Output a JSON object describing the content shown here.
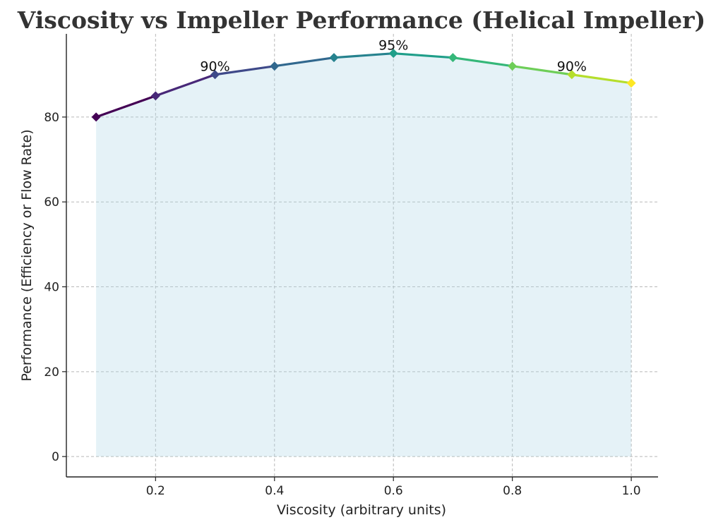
{
  "chart_data": {
    "type": "line",
    "title": "Viscosity vs Impeller Performance (Helical Impeller)",
    "xlabel": "Viscosity (arbitrary units)",
    "ylabel": "Performance (Efficiency or Flow Rate)",
    "x": [
      0.1,
      0.2,
      0.3,
      0.4,
      0.5,
      0.6,
      0.7,
      0.8,
      0.9,
      1.0
    ],
    "series": [
      {
        "name": "Performance",
        "values": [
          80,
          85,
          90,
          92,
          94,
          95,
          94,
          92,
          90,
          88
        ]
      }
    ],
    "xlim": [
      0.05,
      1.045
    ],
    "ylim": [
      -4.8,
      99.6
    ],
    "xticks": [
      0.2,
      0.4,
      0.6,
      0.8,
      1.0
    ],
    "xtick_labels": [
      "0.2",
      "0.4",
      "0.6",
      "0.8",
      "1.0"
    ],
    "yticks": [
      0,
      20,
      40,
      60,
      80
    ],
    "ytick_labels": [
      "0",
      "20",
      "40",
      "60",
      "80"
    ],
    "annotations": [
      {
        "x": 0.3,
        "y": 90,
        "text": "90%"
      },
      {
        "x": 0.6,
        "y": 95,
        "text": "95%"
      },
      {
        "x": 0.9,
        "y": 90,
        "text": "90%"
      }
    ],
    "grid": true,
    "fill_under": true,
    "colors": {
      "fill": "#add8e6",
      "gradient": [
        "#440154",
        "#482878",
        "#3e4989",
        "#31688e",
        "#26828e",
        "#1f9e89",
        "#35b779",
        "#6ece58",
        "#b5de2b",
        "#fde725"
      ]
    }
  }
}
